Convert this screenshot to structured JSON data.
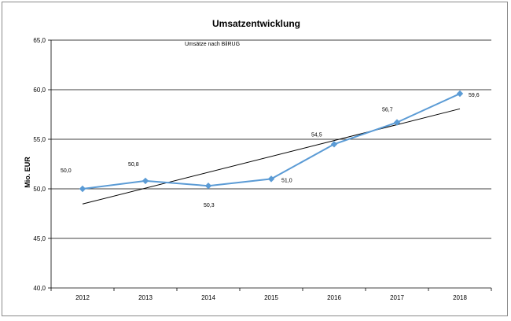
{
  "chart_data": {
    "type": "line",
    "title": "Umsatzentwicklung",
    "subtitle": "Umsätze nach BilRUG",
    "xlabel": "",
    "ylabel": "Mio. EUR",
    "categories": [
      "2012",
      "2013",
      "2014",
      "2015",
      "2016",
      "2017",
      "2018"
    ],
    "y_ticks": [
      "40,0",
      "45,0",
      "50,0",
      "55,0",
      "60,0",
      "65,0"
    ],
    "ylim": [
      40,
      65
    ],
    "grid": true,
    "legend": "none",
    "series": [
      {
        "values": [
          50.0,
          50.8,
          50.3,
          51.0,
          54.5,
          56.7,
          59.6
        ],
        "labels": [
          "50,0",
          "50,8",
          "50,3",
          "51,0",
          "54,5",
          "56,7",
          "59,6"
        ],
        "color": "#5b9bd5",
        "marker": "diamond"
      }
    ],
    "trendline": {
      "type": "linear",
      "color": "#000000"
    }
  }
}
